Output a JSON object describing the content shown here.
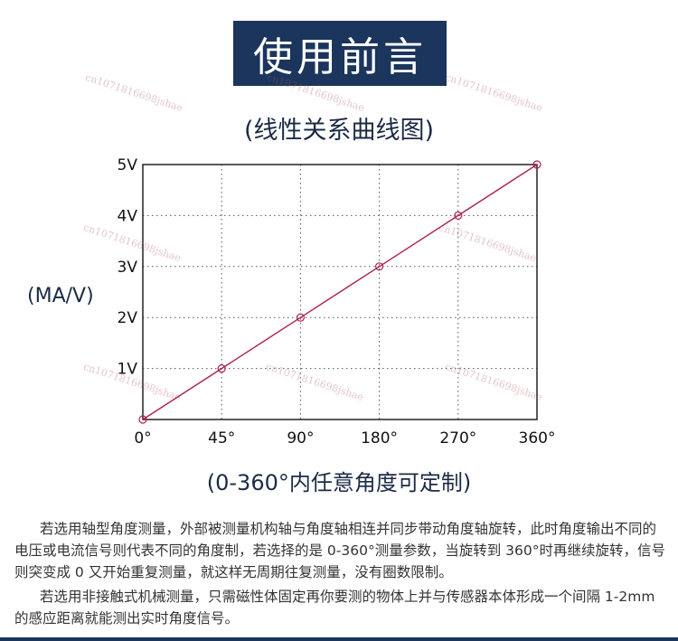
{
  "header": {
    "title": "使用前言"
  },
  "chart_data": {
    "type": "line",
    "title": "(线性关系曲线图)",
    "ylabel": "(MA/V)",
    "xlabel": "",
    "x": [
      0,
      45,
      90,
      180,
      270,
      360
    ],
    "y": [
      0,
      1,
      2,
      3,
      4,
      5
    ],
    "x_tick_labels": [
      "0°",
      "45°",
      "90°",
      "180°",
      "270°",
      "360°"
    ],
    "y_tick_labels": [
      "1V",
      "2V",
      "3V",
      "4V",
      "5V"
    ],
    "y_tick_values": [
      1,
      2,
      3,
      4,
      5
    ],
    "ylim": [
      0,
      5
    ],
    "grid": true,
    "line_color": "#b0204a",
    "marker_color": "#b0204a"
  },
  "caption": {
    "range_text": "(0-360°内任意角度可定制)"
  },
  "description": {
    "paragraph1": "若选用轴型角度测量，外部被测量机构轴与角度轴相连并同步带动角度轴旋转，此时角度输出不同的电压或电流信号则代表不同的角度制，若选择的是 0-360°测量参数，当旋转到 360°时再继续旋转，信号则突变成 0 又开始重复测量，就这样无周期往复测量，没有圈数限制。",
    "paragraph2": "若选用非接触式机械测量，只需磁性体固定再你要测的物体上并与传感器本体形成一个间隔 1-2mm 的感应距离就能测出实时角度信号。"
  },
  "watermark": {
    "text": "cn1071816698jshae"
  }
}
